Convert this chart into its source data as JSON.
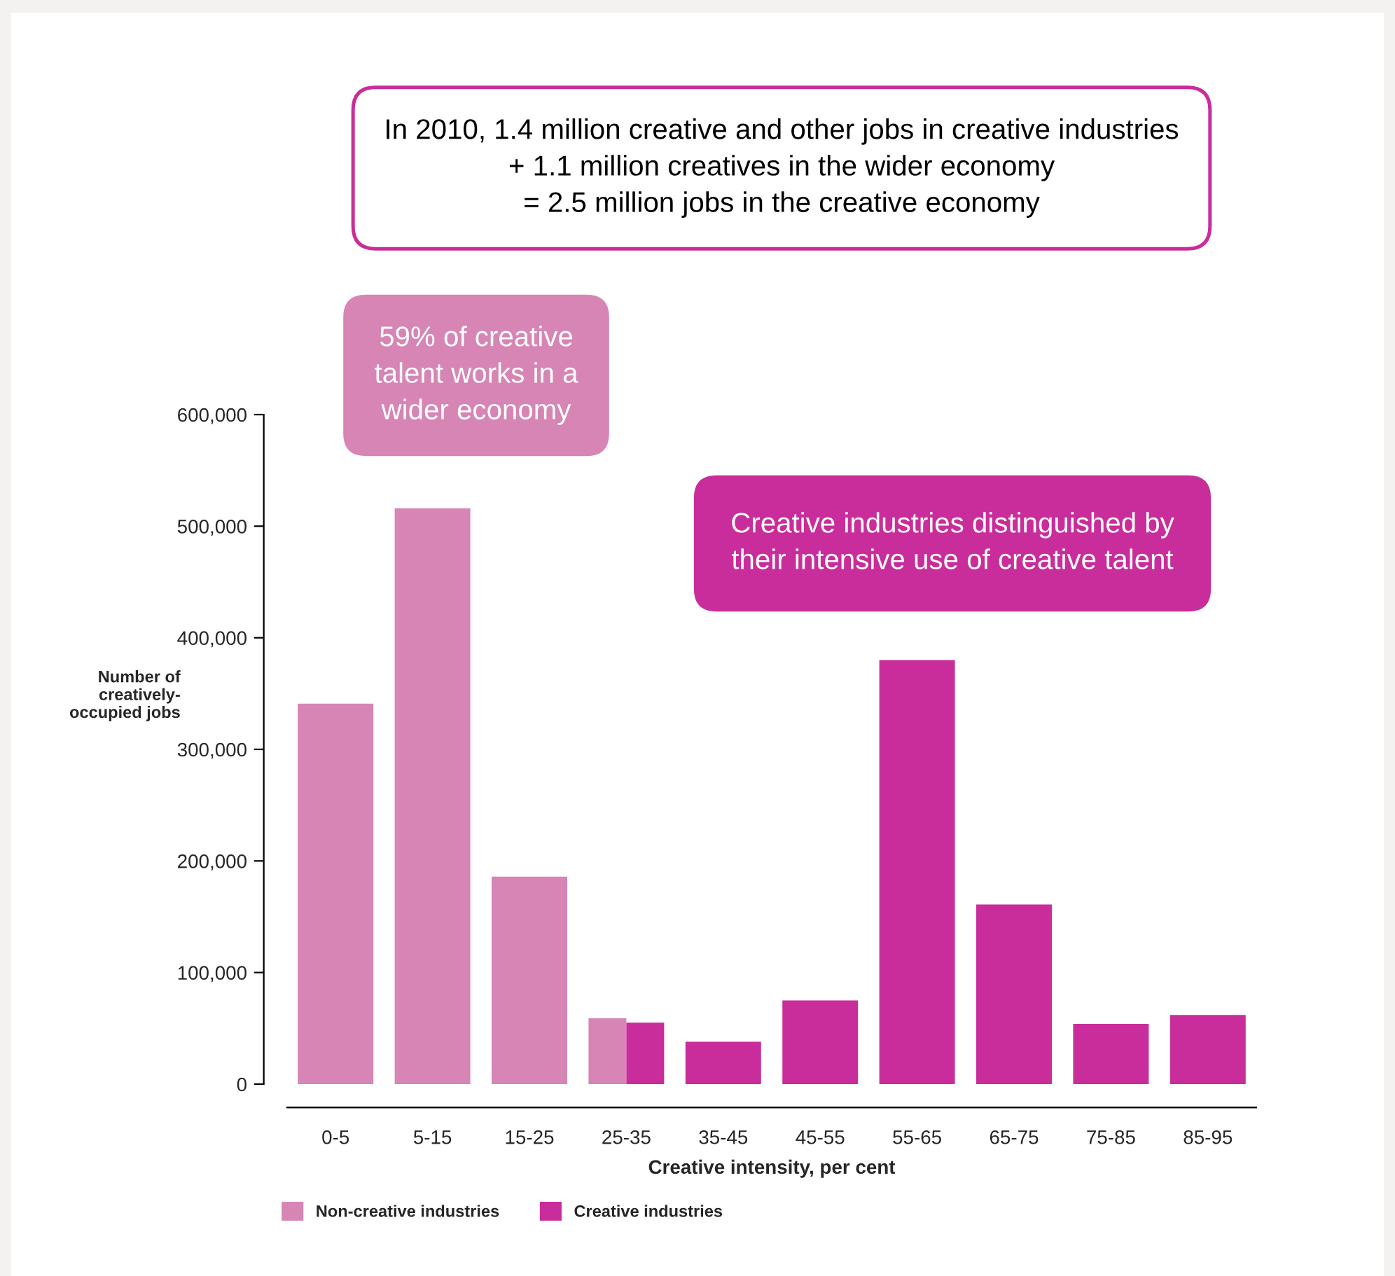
{
  "chart_data": {
    "type": "bar",
    "xlabel": "Creative intensity, per cent",
    "ylabel": "Number of\ncreatively-\noccupied jobs",
    "categories": [
      "0-5",
      "5-15",
      "15-25",
      "25-35",
      "35-45",
      "45-55",
      "55-65",
      "65-75",
      "75-85",
      "85-95"
    ],
    "series": [
      {
        "name": "Non-creative industries",
        "color": "#d685b5",
        "values": [
          341000,
          516000,
          186000,
          59000,
          null,
          null,
          null,
          null,
          null,
          null
        ]
      },
      {
        "name": "Creative industries",
        "color": "#c92d9b",
        "values": [
          null,
          null,
          null,
          55000,
          38000,
          75000,
          380000,
          161000,
          54000,
          62000
        ]
      }
    ],
    "ylim": [
      0,
      600000
    ],
    "yticks": [
      {
        "value": 0,
        "label": "0"
      },
      {
        "value": 100000,
        "label": "100,000"
      },
      {
        "value": 200000,
        "label": "200,000"
      },
      {
        "value": 300000,
        "label": "300,000"
      },
      {
        "value": 400000,
        "label": "400,000"
      },
      {
        "value": 500000,
        "label": "500,000"
      },
      {
        "value": 600000,
        "label": "600,000"
      }
    ],
    "grid": false,
    "legend": "bottom left",
    "annotations": [
      "In 2010, 1.4 million creative and other jobs in creative industries\n+ 1.1 million creatives in the wider economy\n= 2.5 million jobs in the creative economy",
      "59% of creative\ntalent works in a\nwider economy",
      "Creative industries distinguished by\ntheir intensive use of creative talent"
    ]
  }
}
